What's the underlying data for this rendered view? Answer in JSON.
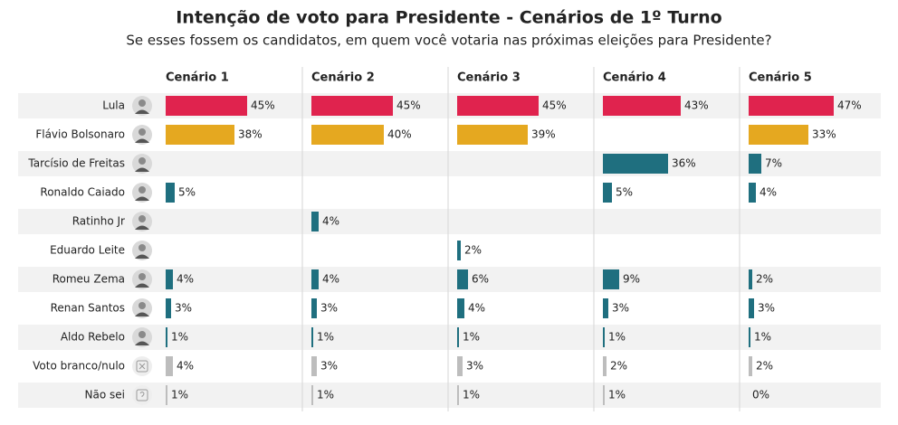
{
  "chart_data": {
    "type": "bar",
    "orientation": "horizontal",
    "title": "Intenção de voto para Presidente - Cenários de 1º Turno",
    "subtitle": "Se esses fossem os candidatos, em quem você votaria nas próximas eleições para Presidente?",
    "categories": [
      "Lula",
      "Flávio Bolsonaro",
      "Tarcísio de Freitas",
      "Ronaldo Caiado",
      "Ratinho Jr",
      "Eduardo Leite",
      "Romeu Zema",
      "Renan Santos",
      "Aldo Rebelo",
      "Voto branco/nulo",
      "Não sei"
    ],
    "category_colors": [
      "#e0234e",
      "#e5a820",
      "#1f6f7f",
      "#1f6f7f",
      "#1f6f7f",
      "#1f6f7f",
      "#1f6f7f",
      "#1f6f7f",
      "#1f6f7f",
      "#bdbdbd",
      "#bdbdbd"
    ],
    "series": [
      {
        "name": "Cenário 1",
        "values": [
          45,
          38,
          null,
          5,
          null,
          null,
          4,
          3,
          1,
          4,
          1
        ],
        "value_labels": [
          "45%",
          "38%",
          null,
          "5%",
          null,
          null,
          "4%",
          "3%",
          "1%",
          "4%",
          "1%"
        ]
      },
      {
        "name": "Cenário 2",
        "values": [
          45,
          40,
          null,
          null,
          4,
          null,
          4,
          3,
          1,
          3,
          1
        ],
        "value_labels": [
          "45%",
          "40%",
          null,
          null,
          "4%",
          null,
          "4%",
          "3%",
          "1%",
          "3%",
          "1%"
        ]
      },
      {
        "name": "Cenário 3",
        "values": [
          45,
          39,
          null,
          null,
          null,
          2,
          6,
          4,
          1,
          3,
          1
        ],
        "value_labels": [
          "45%",
          "39%",
          null,
          null,
          null,
          "2%",
          "6%",
          "4%",
          "1%",
          "3%",
          "1%"
        ]
      },
      {
        "name": "Cenário 4",
        "values": [
          43,
          null,
          36,
          5,
          null,
          null,
          9,
          3,
          1,
          2,
          1
        ],
        "value_labels": [
          "43%",
          null,
          "36%",
          "5%",
          null,
          null,
          "9%",
          "3%",
          "1%",
          "2%",
          "1%"
        ]
      },
      {
        "name": "Cenário 5",
        "values": [
          47,
          33,
          7,
          4,
          null,
          null,
          2,
          3,
          1,
          2,
          0
        ],
        "value_labels": [
          "47%",
          "33%",
          "7%",
          "4%",
          null,
          null,
          "2%",
          "3%",
          "1%",
          "2%",
          "0%"
        ]
      }
    ]
  }
}
